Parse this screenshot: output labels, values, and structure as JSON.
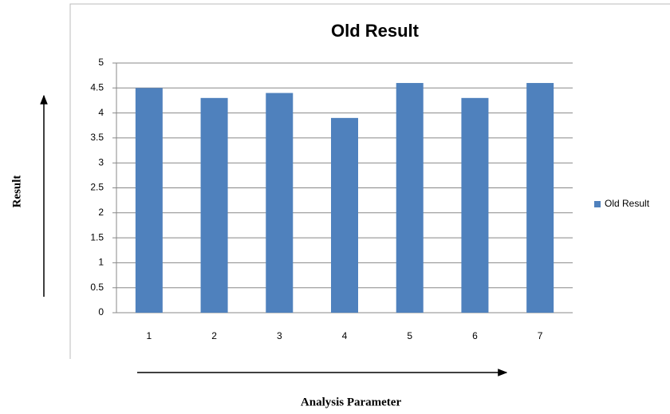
{
  "chart_data": {
    "type": "bar",
    "title": "Old Result",
    "x_label": "Analysis Parameter",
    "y_label": "Result",
    "categories": [
      "1",
      "2",
      "3",
      "4",
      "5",
      "6",
      "7"
    ],
    "series": [
      {
        "name": "Old Result",
        "color": "#4f81bd",
        "values": [
          4.5,
          4.3,
          4.4,
          3.9,
          4.6,
          4.3,
          4.6
        ]
      }
    ],
    "ylim": [
      0,
      5
    ],
    "yticks": [
      0,
      0.5,
      1,
      1.5,
      2,
      2.5,
      3,
      3.5,
      4,
      4.5,
      5
    ],
    "grid": true,
    "legend": "right"
  }
}
